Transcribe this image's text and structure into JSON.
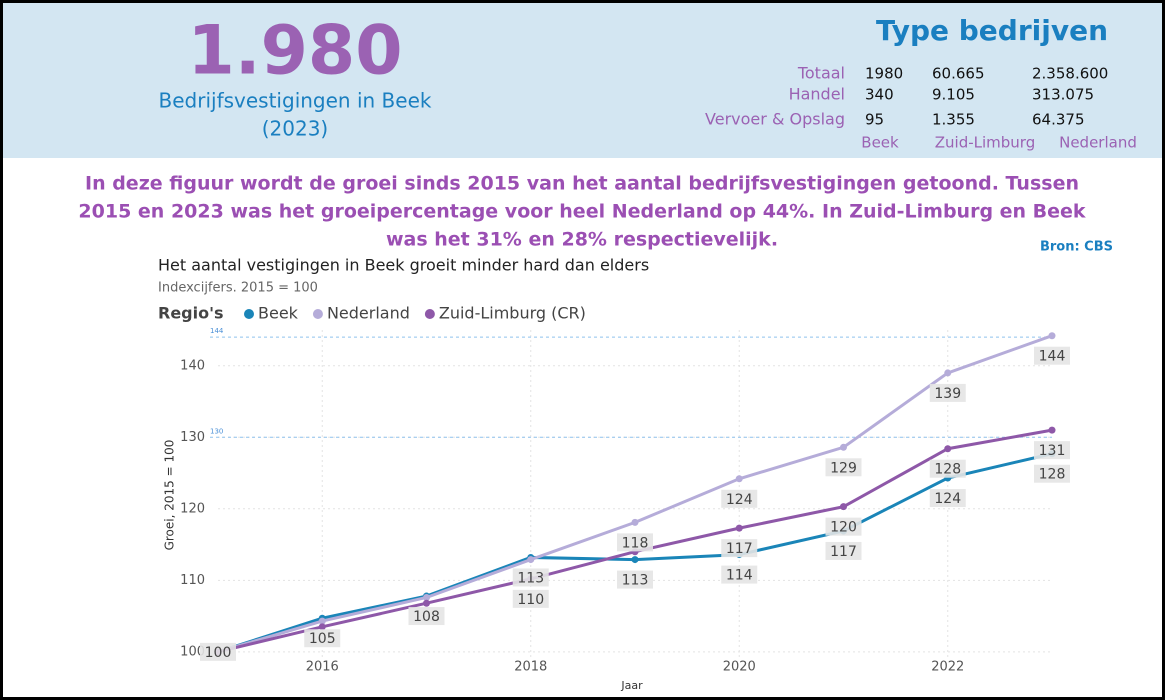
{
  "header": {
    "kpi_value": "1.980",
    "kpi_label": "Bedrijfsvestigingen in Beek",
    "kpi_year": "(2023)",
    "table_title": "Type bedrijven",
    "table": {
      "rows": [
        {
          "label": "Totaal",
          "values": [
            "1980",
            "60.665",
            "2.358.600"
          ]
        },
        {
          "label": "Handel",
          "values": [
            "340",
            "9.105",
            "313.075"
          ]
        },
        {
          "label": "Vervoer & Opslag",
          "values": [
            "95",
            "1.355",
            "64.375"
          ]
        }
      ],
      "columns": [
        "Beek",
        "Zuid-Limburg",
        "Nederland"
      ]
    }
  },
  "description": [
    "In deze figuur wordt de groei sinds 2015 van het aantal bedrijfsvestigingen getoond. Tussen",
    "2015 en 2023 was het groeipercentage voor heel Nederland op 44%. In Zuid-Limburg en Beek",
    "was het 31% en 28% respectievelijk."
  ],
  "source": "Bron: CBS",
  "chart_data": {
    "type": "line",
    "title": "Het aantal vestigingen in Beek groeit minder hard dan elders",
    "subtitle": "Indexcijfers. 2015 = 100",
    "legend_title": "Regio's",
    "x_label": "Jaar",
    "y_label": "Groei, 2015 = 100",
    "x": [
      2015,
      2016,
      2017,
      2018,
      2019,
      2020,
      2021,
      2022,
      2023
    ],
    "xlim": [
      2015,
      2023
    ],
    "xticks": [
      2016,
      2018,
      2020,
      2022
    ],
    "ylim": [
      99,
      145
    ],
    "yticks": [
      100,
      110,
      120,
      130,
      140
    ],
    "reference_lines": [
      144,
      130
    ],
    "grid": true,
    "series": [
      {
        "name": "Beek",
        "color": "#1a85b8",
        "values": [
          100,
          104.7,
          107.8,
          113.2,
          112.9,
          113.6,
          116.9,
          124.3,
          127.7
        ],
        "value_labels": [
          "100",
          "105",
          "108",
          "113",
          "113",
          "114",
          "117",
          "124",
          "128"
        ]
      },
      {
        "name": "Nederland",
        "color": "#b5acd9",
        "values": [
          100,
          104.3,
          107.6,
          112.9,
          118.1,
          124.2,
          128.6,
          139,
          144.2
        ],
        "value_labels": [
          null,
          null,
          null,
          null,
          "118",
          "124",
          "129",
          "139",
          "144"
        ]
      },
      {
        "name": "Zuid-Limburg (CR)",
        "color": "#8e58a8",
        "values": [
          100,
          103.5,
          106.8,
          110.2,
          114,
          117.3,
          120.3,
          128.4,
          131
        ],
        "value_labels": [
          null,
          null,
          null,
          "110",
          null,
          "117",
          "120",
          "128",
          "131"
        ]
      }
    ]
  }
}
